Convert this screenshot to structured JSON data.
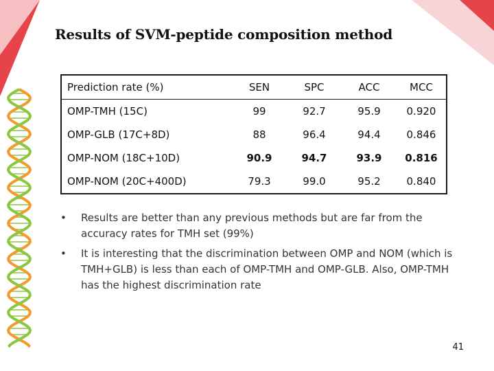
{
  "slide": {
    "title": "Results of SVM-peptide composition method",
    "page_number": "41"
  },
  "table": {
    "headers": [
      "Prediction rate (%)",
      "SEN",
      "SPC",
      "ACC",
      "MCC"
    ],
    "rows": [
      {
        "label": "OMP-TMH (15C)",
        "sen": "99",
        "spc": "92.7",
        "acc": "95.9",
        "mcc": "0.920"
      },
      {
        "label": "OMP-GLB (17C+8D)",
        "sen": "88",
        "spc": "96.4",
        "acc": "94.4",
        "mcc": "0.846"
      },
      {
        "label": "OMP-NOM (18C+10D)",
        "sen": "90.9",
        "spc": "94.7",
        "acc": "93.9",
        "mcc": "0.816"
      },
      {
        "label": "OMP-NOM (20C+400D)",
        "sen": "79.3",
        "spc": "99.0",
        "acc": "95.2",
        "mcc": "0.840"
      }
    ]
  },
  "bullets": [
    {
      "marker": "•",
      "text": "Results are better than any previous methods but are far from the accuracy rates for TMH set (99%)"
    },
    {
      "marker": "•",
      "text": "It is interesting that the discrimination between OMP and NOM (which is TMH+GLB) is less than each of OMP-TMH and OMP-GLB. Also, OMP-TMH has the highest discrimination rate"
    }
  ],
  "colors": {
    "accent_red": "#e0303a",
    "accent_pink": "#f6d3d5",
    "helix_green": "#8cc63f",
    "helix_orange": "#f39a2b"
  }
}
